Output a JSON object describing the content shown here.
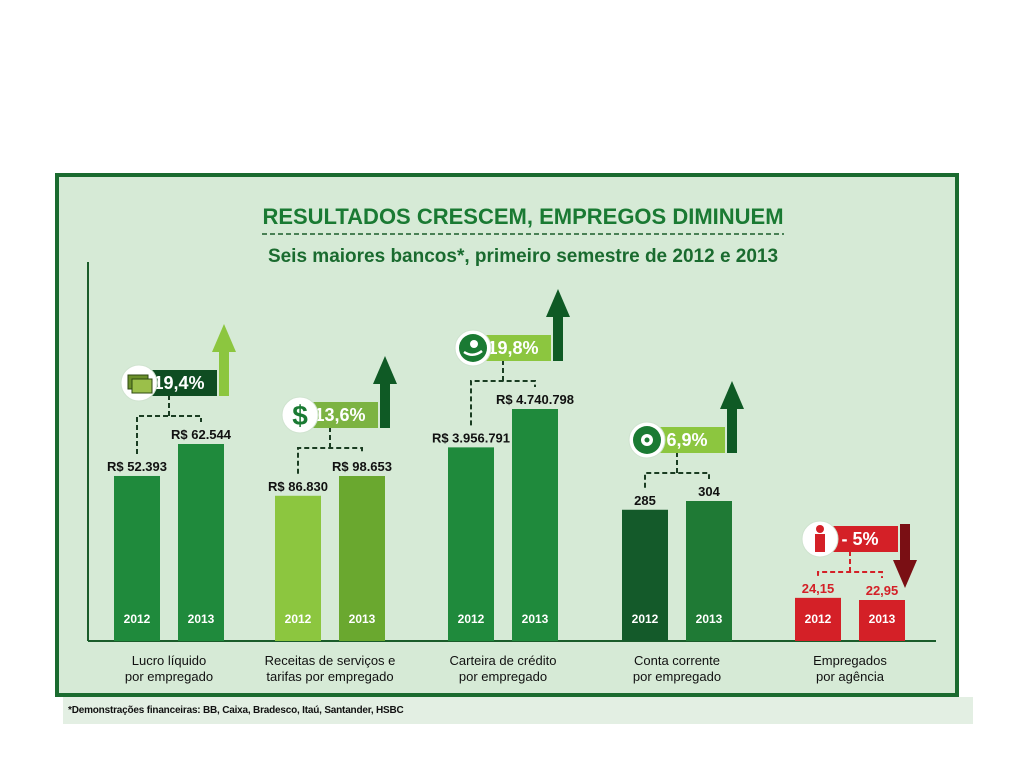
{
  "chart_data": {
    "type": "bar",
    "title": "RESULTADOS CRESCEM, EMPREGOS DIMINUEM",
    "subtitle": "Seis maiores bancos*, primeiro semestre de 2012 e 2013",
    "footnote": "*Demonstrações financeiras: BB, Caixa, Bradesco, Itaú, Santander, HSBC",
    "grid": false,
    "groups": [
      {
        "label_line1": "Lucro líquido",
        "label_line2": "por empregado",
        "variation": "19,4%",
        "direction": "up",
        "icon": "money-bills-icon",
        "color_2012": "#1f8a3c",
        "color_2013": "#1f8a3c",
        "badge_color": "#0f4d22",
        "arrow_color": "#8cc63f",
        "bars": [
          {
            "year": "2012",
            "value": 52393,
            "label": "R$ 52.393"
          },
          {
            "year": "2013",
            "value": 62544,
            "label": "R$ 62.544"
          }
        ]
      },
      {
        "label_line1": "Receitas de serviços e",
        "label_line2": "tarifas por empregado",
        "variation": "13,6%",
        "direction": "up",
        "icon": "dollar-sign-icon",
        "color_2012": "#8cc63f",
        "color_2013": "#6aa82f",
        "badge_color": "#7cb342",
        "arrow_color": "#0f5a25",
        "bars": [
          {
            "year": "2012",
            "value": 86830,
            "label": "R$ 86.830"
          },
          {
            "year": "2013",
            "value": 98653,
            "label": "R$ 98.653"
          }
        ]
      },
      {
        "label_line1": "Carteira de crédito",
        "label_line2": "por empregado",
        "variation": "19,8%",
        "direction": "up",
        "icon": "hand-coin-icon",
        "color_2012": "#1f8a3c",
        "color_2013": "#1f8a3c",
        "badge_color": "#8cc63f",
        "arrow_color": "#0f5a25",
        "bars": [
          {
            "year": "2012",
            "value": 3956791,
            "label": "R$ 3.956.791"
          },
          {
            "year": "2013",
            "value": 4740798,
            "label": "R$ 4.740.798"
          }
        ]
      },
      {
        "label_line1": "Conta corrente",
        "label_line2": "por empregado",
        "variation": "6,9%",
        "direction": "up",
        "icon": "target-arrows-icon",
        "color_2012": "#145a2a",
        "color_2013": "#1f7a35",
        "badge_color": "#8cc63f",
        "arrow_color": "#0f5a25",
        "bars": [
          {
            "year": "2012",
            "value": 285,
            "label": "285"
          },
          {
            "year": "2013",
            "value": 304,
            "label": "304"
          }
        ]
      },
      {
        "label_line1": "Empregados",
        "label_line2": "por agência",
        "variation": "- 5%",
        "direction": "down",
        "icon": "worker-icon",
        "color_2012": "#d42027",
        "color_2013": "#d42027",
        "badge_color": "#d42027",
        "arrow_color": "#7a0f14",
        "value_color": "#d42027",
        "bars": [
          {
            "year": "2012",
            "value": 24.15,
            "label": "24,15"
          },
          {
            "year": "2013",
            "value": 22.95,
            "label": "22,95"
          }
        ]
      }
    ]
  },
  "colors": {
    "title_green": "#1a7a33",
    "panel_bg": "#d6ead6",
    "frame": "#1a6b2f"
  }
}
